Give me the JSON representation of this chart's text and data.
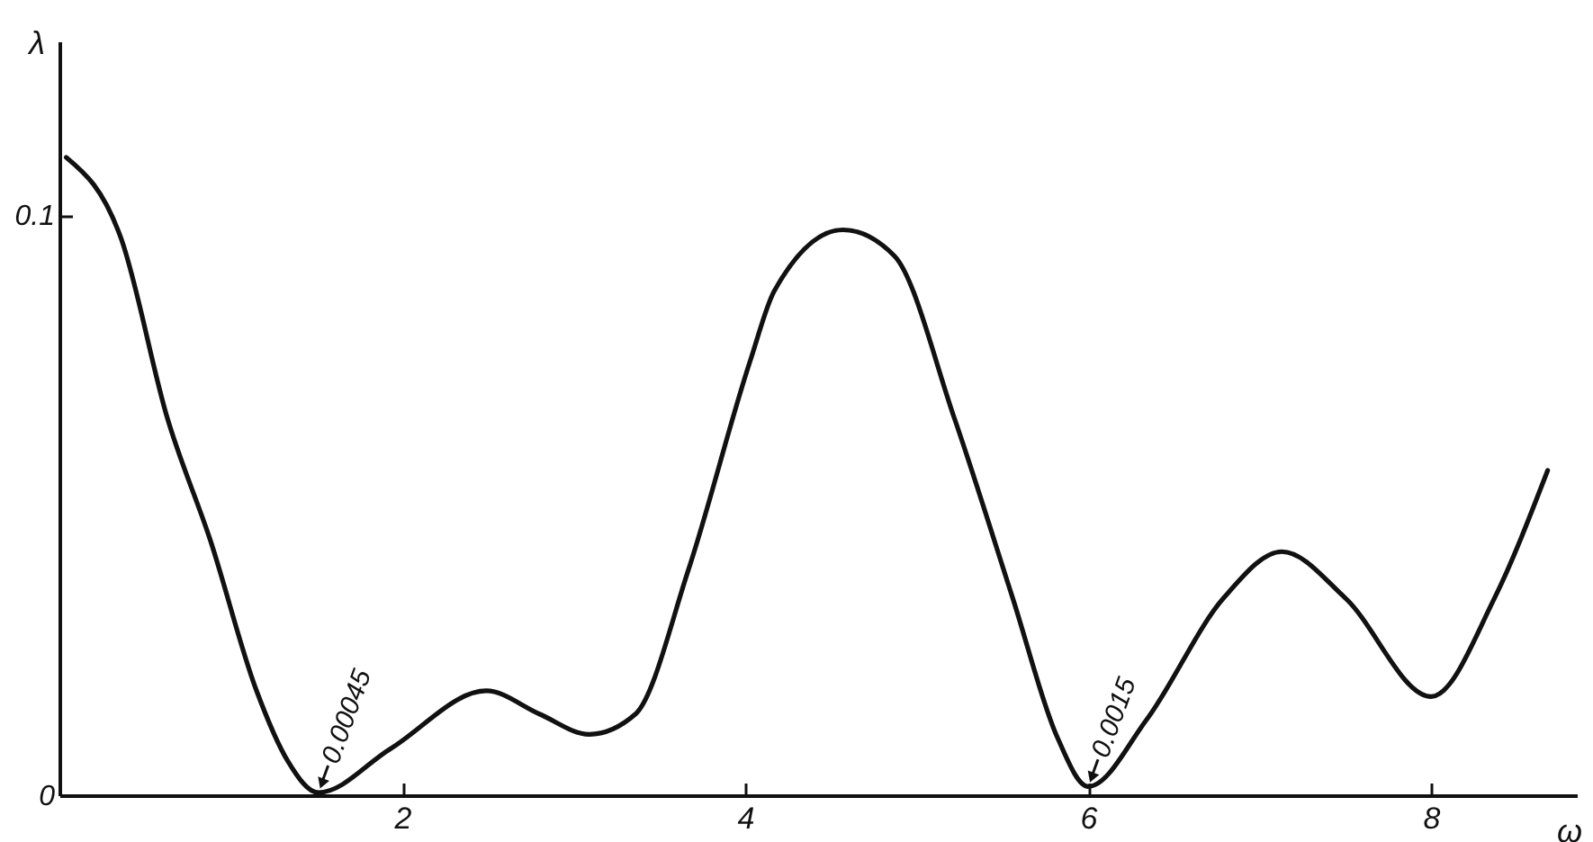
{
  "chart_data": {
    "type": "line",
    "xlabel": "ω",
    "ylabel": "λ",
    "x": [
      0.04,
      0.36,
      0.63,
      0.88,
      1.15,
      1.33,
      1.51,
      1.93,
      2.49,
      2.8,
      3.09,
      3.36,
      3.67,
      4.03,
      4.17,
      4.57,
      4.87,
      5.22,
      5.56,
      5.82,
      6.0,
      6.34,
      6.79,
      7.13,
      7.5,
      8.0,
      8.37,
      8.68
    ],
    "series": [
      {
        "color": "#111111",
        "values": [
          0.11,
          0.096,
          0.065,
          0.044,
          0.018,
          0.006,
          0.00045,
          0.008,
          0.018,
          0.014,
          0.0105,
          0.014,
          0.039,
          0.075,
          0.087,
          0.0975,
          0.093,
          0.065,
          0.034,
          0.01,
          0.0015,
          0.013,
          0.034,
          0.042,
          0.034,
          0.017,
          0.034,
          0.056
        ]
      }
    ],
    "xlim": [
      0,
      8.85
    ],
    "ylim": [
      0,
      0.13
    ],
    "xticks": [
      {
        "value": 0,
        "label": null
      },
      2,
      4,
      6,
      8
    ],
    "yticks": [
      0,
      0.1
    ],
    "annotations": [
      {
        "text": "0.00045",
        "x": 1.51,
        "y": 0.00045
      },
      {
        "text": "0.0015",
        "x": 6.0,
        "y": 0.0015
      }
    ],
    "grid": false,
    "marker": "none",
    "line_style": "solid"
  }
}
